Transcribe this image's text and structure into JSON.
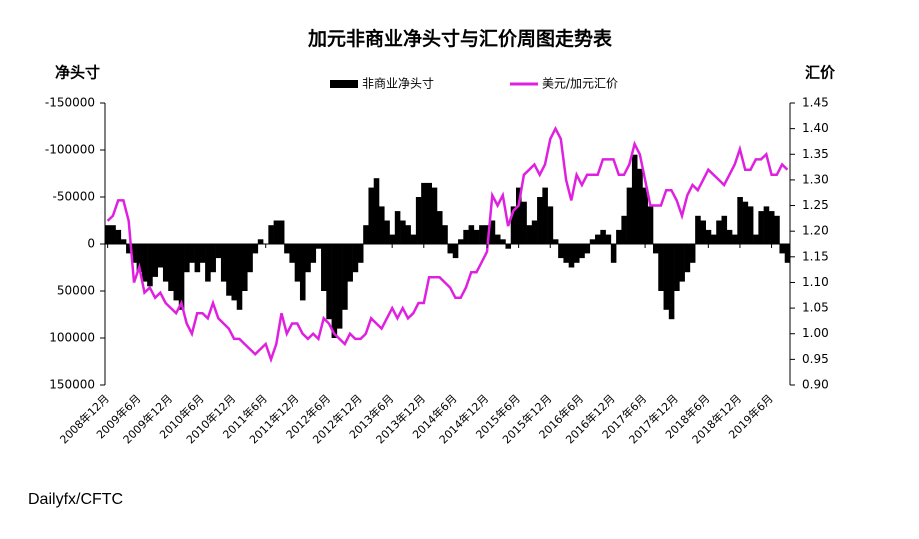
{
  "chart_data": {
    "type": "bar_line",
    "title": "加元非商业净头寸与汇价周图走势表",
    "y_label": "净头寸",
    "y2_label": "汇价",
    "source": "Dailyfx/CFTC",
    "categories": [
      "2008年12月",
      null,
      null,
      null,
      null,
      null,
      "2009年6月",
      null,
      null,
      null,
      null,
      null,
      "2009年12月",
      null,
      null,
      null,
      null,
      null,
      "2010年6月",
      null,
      null,
      null,
      null,
      null,
      "2010年12月",
      null,
      null,
      null,
      null,
      null,
      "2011年6月",
      null,
      null,
      null,
      null,
      null,
      "2011年12月",
      null,
      null,
      null,
      null,
      null,
      "2012年6月",
      null,
      null,
      null,
      null,
      null,
      "2012年12月",
      null,
      null,
      null,
      null,
      null,
      "2013年6月",
      null,
      null,
      null,
      null,
      null,
      "2013年12月",
      null,
      null,
      null,
      null,
      null,
      "2014年6月",
      null,
      null,
      null,
      null,
      null,
      "2014年12月",
      null,
      null,
      null,
      null,
      null,
      "2015年6月",
      null,
      null,
      null,
      null,
      null,
      "2015年12月",
      null,
      null,
      null,
      null,
      null,
      "2016年6月",
      null,
      null,
      null,
      null,
      null,
      "2016年12月",
      null,
      null,
      null,
      null,
      null,
      "2017年6月",
      null,
      null,
      null,
      null,
      null,
      "2017年12月",
      null,
      null,
      null,
      null,
      null,
      "2018年6月",
      null,
      null,
      null,
      null,
      null,
      "2018年12月",
      null,
      null,
      null,
      null,
      null,
      "2019年6月",
      null,
      null,
      null
    ],
    "series": [
      {
        "name": "非商业净头寸",
        "color": "#000000",
        "kind": "bar",
        "axis": "y",
        "values": [
          -20000,
          -20000,
          -15000,
          -5000,
          10000,
          20000,
          30000,
          40000,
          45000,
          35000,
          25000,
          40000,
          50000,
          60000,
          70000,
          30000,
          20000,
          30000,
          20000,
          40000,
          30000,
          15000,
          40000,
          55000,
          60000,
          70000,
          50000,
          30000,
          10000,
          -5000,
          0,
          -20000,
          -25000,
          -25000,
          10000,
          20000,
          40000,
          60000,
          30000,
          20000,
          5000,
          50000,
          80000,
          100000,
          90000,
          70000,
          40000,
          30000,
          20000,
          -20000,
          -60000,
          -70000,
          -40000,
          -25000,
          -10000,
          -35000,
          -25000,
          -20000,
          -10000,
          -50000,
          -65000,
          -65000,
          -60000,
          -35000,
          -20000,
          10000,
          15000,
          -5000,
          -15000,
          -20000,
          -15000,
          -20000,
          -20000,
          -25000,
          -10000,
          -5000,
          5000,
          -40000,
          -60000,
          -45000,
          -20000,
          -25000,
          -50000,
          -60000,
          -40000,
          -5000,
          15000,
          20000,
          25000,
          20000,
          15000,
          10000,
          -5000,
          -10000,
          -15000,
          -10000,
          20000,
          -15000,
          -30000,
          -60000,
          -95000,
          -80000,
          -60000,
          -40000,
          10000,
          50000,
          70000,
          80000,
          50000,
          40000,
          30000,
          20000,
          -30000,
          -25000,
          -15000,
          -10000,
          -25000,
          -30000,
          -15000,
          -10000,
          -50000,
          -45000,
          -40000,
          -10000,
          -35000,
          -40000,
          -35000,
          -30000,
          10000,
          20000
        ]
      },
      {
        "name": "美元/加元汇价",
        "color": "#e020e0",
        "kind": "line",
        "axis": "y2",
        "values": [
          1.22,
          1.23,
          1.26,
          1.26,
          1.22,
          1.1,
          1.13,
          1.08,
          1.09,
          1.07,
          1.08,
          1.06,
          1.05,
          1.04,
          1.06,
          1.02,
          1.0,
          1.04,
          1.04,
          1.03,
          1.06,
          1.03,
          1.02,
          1.01,
          0.99,
          0.99,
          0.98,
          0.97,
          0.96,
          0.97,
          0.98,
          0.95,
          0.98,
          1.04,
          1.0,
          1.02,
          1.02,
          1.0,
          0.99,
          1.0,
          0.99,
          1.03,
          1.02,
          1.0,
          0.99,
          0.98,
          1.0,
          0.99,
          0.99,
          1.0,
          1.03,
          1.02,
          1.01,
          1.03,
          1.05,
          1.03,
          1.05,
          1.03,
          1.04,
          1.06,
          1.06,
          1.11,
          1.11,
          1.11,
          1.1,
          1.09,
          1.07,
          1.07,
          1.09,
          1.12,
          1.12,
          1.14,
          1.16,
          1.27,
          1.25,
          1.27,
          1.21,
          1.24,
          1.25,
          1.31,
          1.32,
          1.33,
          1.31,
          1.33,
          1.38,
          1.4,
          1.38,
          1.3,
          1.26,
          1.31,
          1.29,
          1.31,
          1.31,
          1.31,
          1.34,
          1.34,
          1.34,
          1.31,
          1.31,
          1.33,
          1.37,
          1.35,
          1.3,
          1.25,
          1.25,
          1.25,
          1.28,
          1.28,
          1.26,
          1.23,
          1.27,
          1.29,
          1.28,
          1.3,
          1.32,
          1.31,
          1.3,
          1.29,
          1.31,
          1.33,
          1.36,
          1.32,
          1.32,
          1.34,
          1.34,
          1.35,
          1.31,
          1.31,
          1.33,
          1.32
        ]
      }
    ],
    "ylim": [
      -150000,
      150000
    ],
    "y_inverted": true,
    "yticks": [
      -150000,
      -100000,
      -50000,
      0,
      50000,
      100000,
      150000
    ],
    "y2lim": [
      0.9,
      1.45
    ],
    "y2ticks": [
      {
        "value": 0.9,
        "label": "0.90"
      },
      0.95,
      {
        "value": 1.0,
        "label": "1.00"
      },
      1.05,
      {
        "value": 1.1,
        "label": "1.10"
      },
      1.15,
      {
        "value": 1.2,
        "label": "1.20"
      },
      1.25,
      {
        "value": 1.3,
        "label": "1.30"
      },
      1.35,
      {
        "value": 1.4,
        "label": "1.40"
      },
      1.45
    ],
    "legend": "top"
  }
}
